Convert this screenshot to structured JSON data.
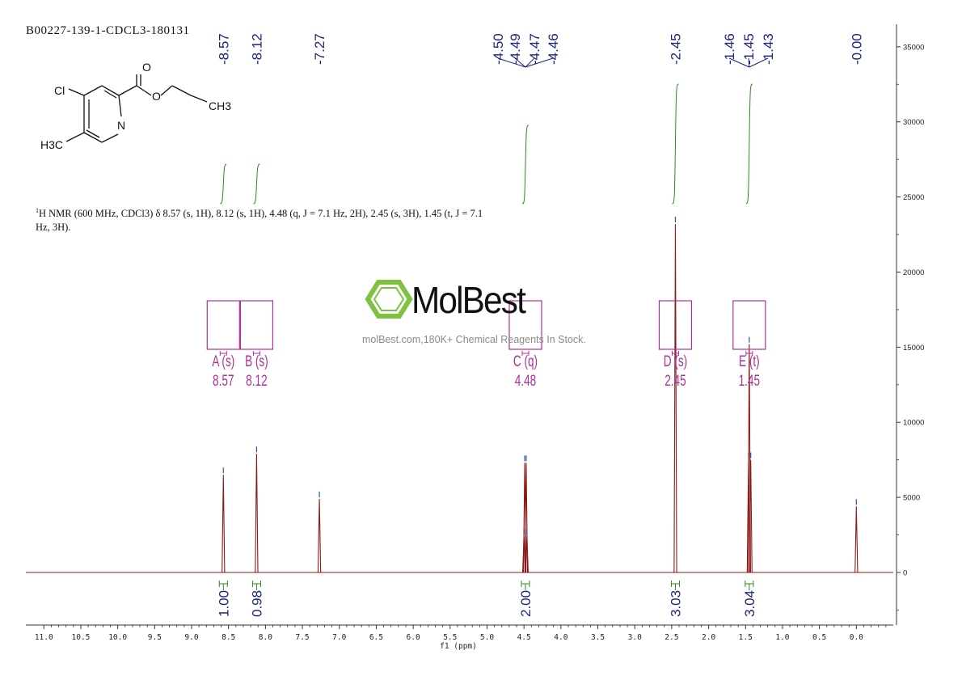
{
  "header": {
    "sample_id": "B00227-139-1-CDCL3-180131"
  },
  "structure": {
    "atom_labels": {
      "chlorine": "Cl",
      "oxygen_carbonyl": "O",
      "oxygen_ester": "O",
      "nitrogen": "N",
      "ch3_ester": "CH3",
      "ch3_ring": "H3C"
    }
  },
  "nmr_description": {
    "sup": "1",
    "text": "H NMR (600 MHz, CDCl3) δ 8.57 (s, 1H), 8.12 (s, 1H), 4.48 (q, J = 7.1 Hz, 2H), 2.45 (s, 3H), 1.45 (t, J = 7.1 Hz, 3H)."
  },
  "watermark": {
    "logo_text": "MolBest",
    "tagline": "molBest.com,180K+ Chemical Reagents In Stock."
  },
  "colors": {
    "spectrum": "#8b1a1a",
    "peak_label": "#1a237e",
    "multiplet_box": "#b0309a",
    "integral": "#2e8b1e",
    "axis": "#333333",
    "logo_green": "#7fc241"
  },
  "chart_data": {
    "type": "line",
    "title": "",
    "xlabel": "f1 (ppm)",
    "ylabel": "",
    "xlim": [
      11.2,
      -0.5
    ],
    "ylim": [
      -3500,
      36500
    ],
    "x_reversed": true,
    "grid": false,
    "x_ticks": [
      "11.0",
      "10.5",
      "10.0",
      "9.5",
      "9.0",
      "8.5",
      "8.0",
      "7.5",
      "7.0",
      "6.5",
      "6.0",
      "5.5",
      "5.0",
      "4.5",
      "4.0",
      "3.5",
      "3.0",
      "2.5",
      "2.0",
      "1.5",
      "1.0",
      "0.5",
      "0.0"
    ],
    "y_ticks": [
      "35000",
      "30000",
      "25000",
      "20000",
      "15000",
      "10000",
      "5000",
      "0"
    ],
    "peaks": [
      {
        "ppm": 8.57,
        "intensity": 6500
      },
      {
        "ppm": 8.12,
        "intensity": 7900
      },
      {
        "ppm": 7.27,
        "intensity": 4900
      },
      {
        "ppm": 4.5,
        "intensity": 2400
      },
      {
        "ppm": 4.49,
        "intensity": 7300
      },
      {
        "ppm": 4.47,
        "intensity": 7300
      },
      {
        "ppm": 4.46,
        "intensity": 2400
      },
      {
        "ppm": 2.45,
        "intensity": 23200
      },
      {
        "ppm": 1.46,
        "intensity": 7500
      },
      {
        "ppm": 1.45,
        "intensity": 15200
      },
      {
        "ppm": 1.43,
        "intensity": 7500
      },
      {
        "ppm": 0.0,
        "intensity": 4400
      }
    ],
    "peak_labels": [
      "8.57",
      "8.12",
      "7.27",
      "4.50",
      "4.49",
      "4.47",
      "4.46",
      "2.45",
      "1.46",
      "1.45",
      "1.43",
      "0.00"
    ],
    "multiplets": [
      {
        "label": "A (s)",
        "shift": "8.57",
        "ppm": 8.57
      },
      {
        "label": "B (s)",
        "shift": "8.12",
        "ppm": 8.12
      },
      {
        "label": "C (q)",
        "shift": "4.48",
        "ppm": 4.48
      },
      {
        "label": "D (s)",
        "shift": "2.45",
        "ppm": 2.45
      },
      {
        "label": "E (t)",
        "shift": "1.45",
        "ppm": 1.45
      }
    ],
    "integrals": [
      {
        "ppm": 8.57,
        "value": "1.00"
      },
      {
        "ppm": 8.12,
        "value": "0.98"
      },
      {
        "ppm": 4.48,
        "value": "2.00"
      },
      {
        "ppm": 2.45,
        "value": "3.03"
      },
      {
        "ppm": 1.45,
        "value": "3.04"
      }
    ]
  }
}
